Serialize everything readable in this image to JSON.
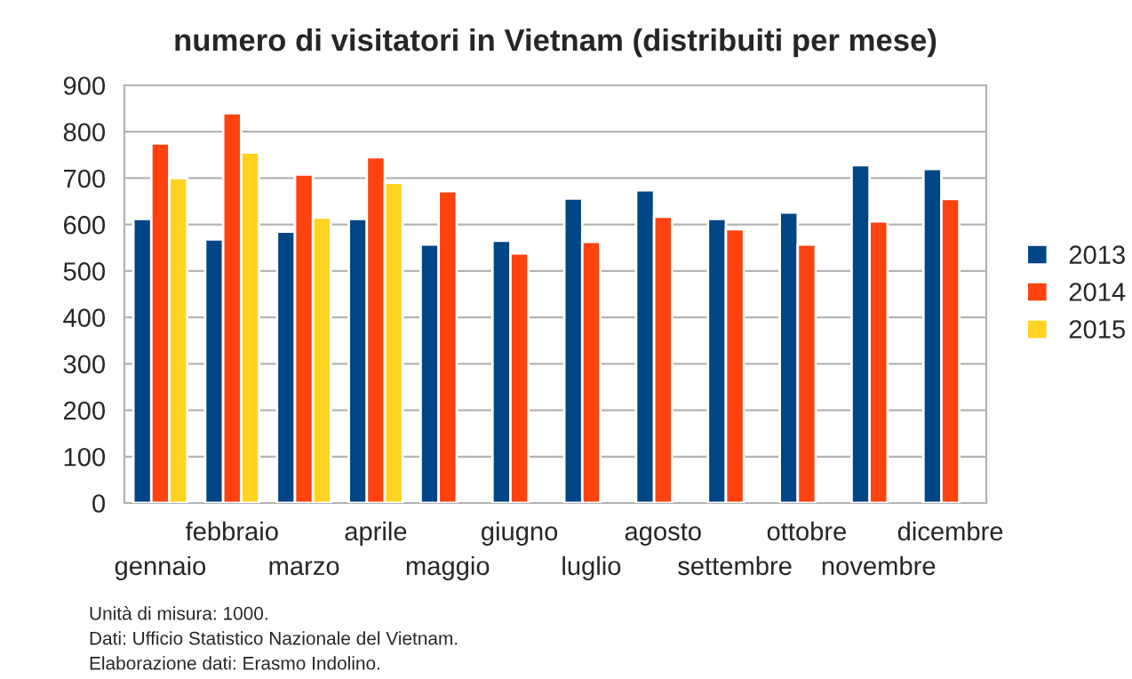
{
  "chart_data": {
    "type": "bar",
    "title": "numero di visitatori in Vietnam (distribuiti per mese)",
    "categories": [
      "gennaio",
      "febbraio",
      "marzo",
      "aprile",
      "maggio",
      "giugno",
      "luglio",
      "agosto",
      "settembre",
      "ottobre",
      "novembre",
      "dicembre"
    ],
    "series": [
      {
        "name": "2013",
        "color": "#004586",
        "values": [
          612,
          568,
          585,
          612,
          557,
          565,
          656,
          674,
          612,
          626,
          728,
          720
        ]
      },
      {
        "name": "2014",
        "color": "#ff420e",
        "values": [
          775,
          840,
          708,
          745,
          672,
          538,
          563,
          617,
          590,
          557,
          607,
          655
        ]
      },
      {
        "name": "2015",
        "color": "#ffd320",
        "values": [
          700,
          755,
          615,
          690,
          null,
          null,
          null,
          null,
          null,
          null,
          null,
          null
        ]
      }
    ],
    "ylim": [
      0,
      900
    ],
    "yticks": [
      0,
      100,
      200,
      300,
      400,
      500,
      600,
      700,
      800,
      900
    ],
    "grid": "y",
    "legend": "right",
    "annotations": [
      "Unità di misura: 1000.",
      "Dati: Ufficio Statistico Nazionale del Vietnam.",
      "Elaborazione dati: Erasmo Indolino."
    ]
  }
}
